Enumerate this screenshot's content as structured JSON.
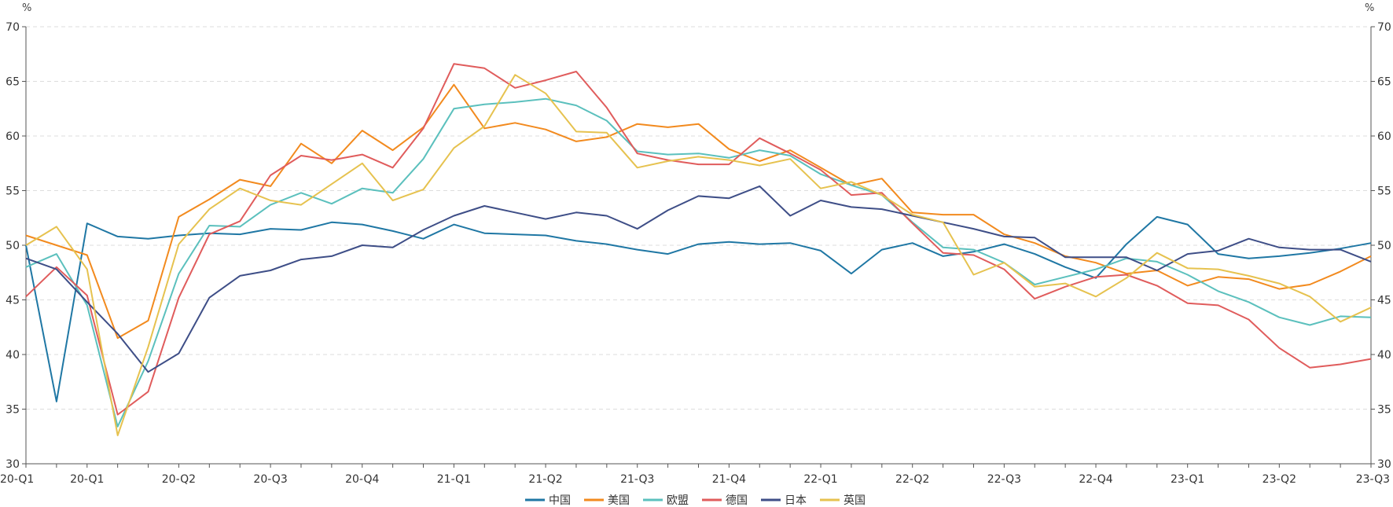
{
  "chart_data": {
    "type": "line",
    "left_unit": "%",
    "right_unit": "%",
    "ylim": [
      30,
      70
    ],
    "y_ticks": [
      30,
      35,
      40,
      45,
      50,
      55,
      60,
      65,
      70
    ],
    "grid": "horizontal-dashed",
    "legend_position": "bottom",
    "x_tick_labels": [
      "20-Q1",
      "20-Q1",
      "20-Q2",
      "20-Q3",
      "20-Q4",
      "21-Q1",
      "21-Q2",
      "21-Q3",
      "21-Q4",
      "22-Q1",
      "22-Q2",
      "22-Q3",
      "22-Q4",
      "23-Q1",
      "23-Q2",
      "23-Q3"
    ],
    "x_tick_positions": [
      0,
      2,
      5,
      8,
      11,
      14,
      17,
      20,
      23,
      26,
      29,
      32,
      35,
      38,
      41,
      44
    ],
    "series": [
      {
        "name": "中国",
        "color": "#1f77a4",
        "values": [
          50.0,
          35.7,
          52.0,
          50.8,
          50.6,
          50.9,
          51.1,
          51.0,
          51.5,
          51.4,
          52.1,
          51.9,
          51.3,
          50.6,
          51.9,
          51.1,
          51.0,
          50.9,
          50.4,
          50.1,
          49.6,
          49.2,
          50.1,
          50.3,
          50.1,
          50.2,
          49.5,
          47.4,
          49.6,
          50.2,
          49.0,
          49.4,
          50.1,
          49.2,
          48.0,
          47.0,
          50.1,
          52.6,
          51.9,
          49.2,
          48.8,
          49.0,
          49.3,
          49.7,
          50.2
        ]
      },
      {
        "name": "美国",
        "color": "#f28a1e",
        "values": [
          50.9,
          50.0,
          49.1,
          41.5,
          43.1,
          52.6,
          54.2,
          56.0,
          55.4,
          59.3,
          57.5,
          60.5,
          58.7,
          60.8,
          64.7,
          60.7,
          61.2,
          60.6,
          59.5,
          59.9,
          61.1,
          60.8,
          61.1,
          58.8,
          57.7,
          58.7,
          57.1,
          55.5,
          56.1,
          53.0,
          52.8,
          52.8,
          51.0,
          50.2,
          49.0,
          48.4,
          47.4,
          47.7,
          46.3,
          47.1,
          46.9,
          46.0,
          46.4,
          47.6,
          49.0
        ]
      },
      {
        "name": "欧盟",
        "color": "#5bc0bd",
        "values": [
          48.0,
          49.2,
          44.5,
          33.4,
          39.4,
          47.4,
          51.8,
          51.7,
          53.7,
          54.8,
          53.8,
          55.2,
          54.8,
          57.9,
          62.5,
          62.9,
          63.1,
          63.4,
          62.8,
          61.4,
          58.6,
          58.3,
          58.4,
          58.0,
          58.7,
          58.2,
          56.5,
          55.5,
          54.6,
          52.1,
          49.8,
          49.6,
          48.4,
          46.4,
          47.1,
          47.8,
          48.8,
          48.5,
          47.3,
          45.8,
          44.8,
          43.4,
          42.7,
          43.5,
          43.4
        ]
      },
      {
        "name": "德国",
        "color": "#e05c5c",
        "values": [
          45.3,
          48.0,
          45.4,
          34.5,
          36.6,
          45.2,
          51.0,
          52.2,
          56.4,
          58.2,
          57.8,
          58.3,
          57.1,
          60.7,
          66.6,
          66.2,
          64.4,
          65.1,
          65.9,
          62.6,
          58.4,
          57.8,
          57.4,
          57.4,
          59.8,
          58.4,
          56.9,
          54.6,
          54.8,
          52.0,
          49.3,
          49.1,
          47.8,
          45.1,
          46.2,
          47.1,
          47.3,
          46.3,
          44.7,
          44.5,
          43.2,
          40.6,
          38.8,
          39.1,
          39.6
        ]
      },
      {
        "name": "日本",
        "color": "#3e4e87",
        "values": [
          48.8,
          47.8,
          44.8,
          41.9,
          38.4,
          40.1,
          45.2,
          47.2,
          47.7,
          48.7,
          49.0,
          50.0,
          49.8,
          51.4,
          52.7,
          53.6,
          53.0,
          52.4,
          53.0,
          52.7,
          51.5,
          53.2,
          54.5,
          54.3,
          55.4,
          52.7,
          54.1,
          53.5,
          53.3,
          52.7,
          52.1,
          51.5,
          50.8,
          50.7,
          48.9,
          48.9,
          48.9,
          47.7,
          49.2,
          49.5,
          50.6,
          49.8,
          49.6,
          49.6,
          48.5
        ]
      },
      {
        "name": "英国",
        "color": "#e6c24f",
        "values": [
          50.0,
          51.7,
          47.8,
          32.6,
          40.7,
          50.1,
          53.3,
          55.2,
          54.1,
          53.7,
          55.6,
          57.5,
          54.1,
          55.1,
          58.9,
          60.9,
          65.6,
          63.9,
          60.4,
          60.3,
          57.1,
          57.7,
          58.1,
          57.8,
          57.3,
          57.9,
          55.2,
          55.8,
          54.6,
          52.8,
          52.1,
          47.3,
          48.4,
          46.2,
          46.5,
          45.3,
          47.0,
          49.3,
          47.9,
          47.8,
          47.2,
          46.5,
          45.3,
          43.0,
          44.3
        ]
      }
    ]
  }
}
